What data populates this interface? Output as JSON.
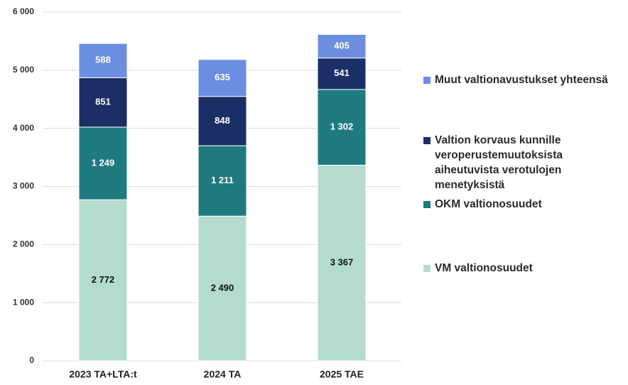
{
  "chart_data": {
    "type": "stacked_bar",
    "categories": [
      "2023 TA+LTA:t",
      "2024 TA",
      "2025 TAE"
    ],
    "series": [
      {
        "name": "VM valtionosuudet",
        "color": "#b3dccf",
        "values": [
          2772,
          2490,
          3367
        ],
        "value_labels": [
          "2 772",
          "2 490",
          "3 367"
        ]
      },
      {
        "name": "OKM valtionosuudet",
        "color": "#1f7a80",
        "values": [
          1249,
          1211,
          1302
        ],
        "value_labels": [
          "1 249",
          "1 211",
          "1 302"
        ]
      },
      {
        "name": "Valtion korvaus kunnille veroperustemuutoksista aiheutuvista verotulojen menetyksistä",
        "color": "#1b2f66",
        "values": [
          851,
          848,
          541
        ]
      },
      {
        "name": "Muut valtionavustukset yhteensä",
        "color": "#6c8ee0",
        "values": [
          588,
          635,
          405
        ]
      }
    ],
    "ylim": [
      0,
      6000
    ],
    "yticks": [
      0,
      {
        "value": 1000,
        "label": "1 000"
      },
      {
        "value": 2000,
        "label": "2 000"
      },
      {
        "value": 3000,
        "label": "3 000"
      },
      {
        "value": 4000,
        "label": "4 000"
      },
      {
        "value": 5000,
        "label": "5 000"
      },
      {
        "value": 6000,
        "label": "6 000"
      }
    ],
    "grid": true,
    "legend": "right"
  }
}
